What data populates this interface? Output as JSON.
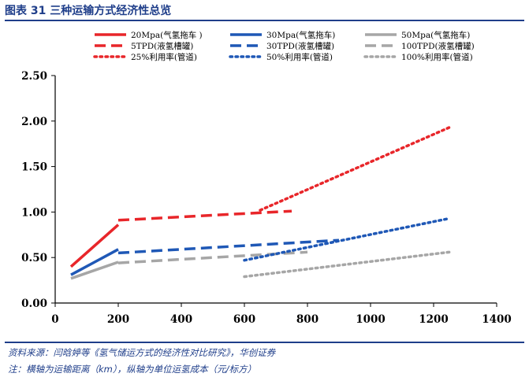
{
  "header": {
    "title": "图表 31 三种运输方式经济性总览"
  },
  "footer": {
    "source": "资料来源：闫晗婷等《氢气储运方式的经济性对比研究》，华创证券",
    "note": "注：横轴为运输距离（km），纵轴为单位运氢成本（元/标方）"
  },
  "colors": {
    "title": "#1f3e8a",
    "red": "#e8262a",
    "blue": "#1f58b6",
    "grey": "#a6a6a6"
  },
  "chart_data": {
    "type": "line",
    "title": "",
    "xlabel": "",
    "ylabel": "",
    "xlim": [
      0,
      1400
    ],
    "ylim": [
      0,
      2.5
    ],
    "xticks": [
      0,
      200,
      400,
      600,
      800,
      1000,
      1200,
      1400
    ],
    "yticks": [
      "0.00",
      "0.50",
      "1.00",
      "1.50",
      "2.00",
      "2.50"
    ],
    "grid": false,
    "legend_position": "top",
    "series": [
      {
        "name": "20Mpa(气氢拖车 )",
        "style": "solid",
        "color": "#e8262a",
        "points": [
          [
            50,
            0.4
          ],
          [
            200,
            0.86
          ]
        ]
      },
      {
        "name": "30Mpa(气氢拖车)",
        "style": "solid",
        "color": "#1f58b6",
        "points": [
          [
            50,
            0.31
          ],
          [
            200,
            0.59
          ]
        ]
      },
      {
        "name": "50Mpa(气氢拖车)",
        "style": "solid",
        "color": "#a6a6a6",
        "points": [
          [
            50,
            0.27
          ],
          [
            200,
            0.45
          ]
        ]
      },
      {
        "name": "5TPD(液氢槽罐)",
        "style": "dashed",
        "color": "#e8262a",
        "points": [
          [
            200,
            0.91
          ],
          [
            750,
            1.01
          ]
        ]
      },
      {
        "name": "30TPD(液氢槽罐)",
        "style": "dashed",
        "color": "#1f58b6",
        "points": [
          [
            200,
            0.55
          ],
          [
            900,
            0.69
          ]
        ]
      },
      {
        "name": "100TPD(液氢槽罐)",
        "style": "dashed",
        "color": "#a6a6a6",
        "points": [
          [
            200,
            0.44
          ],
          [
            800,
            0.56
          ]
        ]
      },
      {
        "name": "25%利用率(管道)",
        "style": "dotted",
        "color": "#e8262a",
        "points": [
          [
            650,
            1.02
          ],
          [
            1250,
            1.93
          ]
        ]
      },
      {
        "name": "50%利用率(管道)",
        "style": "dotted",
        "color": "#1f58b6",
        "points": [
          [
            600,
            0.47
          ],
          [
            1250,
            0.93
          ]
        ]
      },
      {
        "name": "100%利用率(管道)",
        "style": "dotted",
        "color": "#a6a6a6",
        "points": [
          [
            600,
            0.29
          ],
          [
            1250,
            0.56
          ]
        ]
      }
    ]
  }
}
